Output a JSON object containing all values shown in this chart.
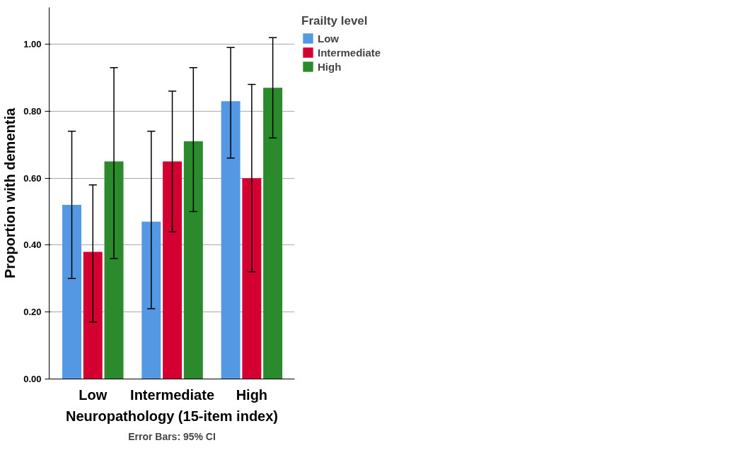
{
  "chart_data": {
    "type": "bar",
    "xlabel": "Neuropathology (15-item index)",
    "ylabel": "Proportion with dementia",
    "legend_title": "Frailty level",
    "categories": [
      "Low",
      "Intermediate",
      "High"
    ],
    "series": [
      {
        "name": "Low",
        "color": "#5497e3",
        "values": [
          0.52,
          0.47,
          0.83
        ],
        "errors": [
          [
            0.3,
            0.74
          ],
          [
            0.21,
            0.74
          ],
          [
            0.66,
            0.99
          ]
        ]
      },
      {
        "name": "Intermediate",
        "color": "#d50032",
        "values": [
          0.38,
          0.65,
          0.6
        ],
        "errors": [
          [
            0.17,
            0.58
          ],
          [
            0.44,
            0.86
          ],
          [
            0.32,
            0.88
          ]
        ]
      },
      {
        "name": "High",
        "color": "#2b8a2b",
        "values": [
          0.65,
          0.71,
          0.87
        ],
        "errors": [
          [
            0.36,
            0.93
          ],
          [
            0.5,
            0.93
          ],
          [
            0.72,
            1.02
          ]
        ]
      }
    ],
    "ylim": [
      0,
      1.11
    ],
    "yticks": [
      {
        "value": 0,
        "label": "0.00"
      },
      {
        "value": 0.2,
        "label": "0.20"
      },
      {
        "value": 0.4,
        "label": "0.40"
      },
      {
        "value": 0.6,
        "label": "0.60"
      },
      {
        "value": 0.8,
        "label": "0.80"
      },
      {
        "value": 1.0,
        "label": "1.00"
      }
    ],
    "grid": "y",
    "legend": "top right",
    "annotations": [
      "Error Bars: 95% CI"
    ]
  }
}
